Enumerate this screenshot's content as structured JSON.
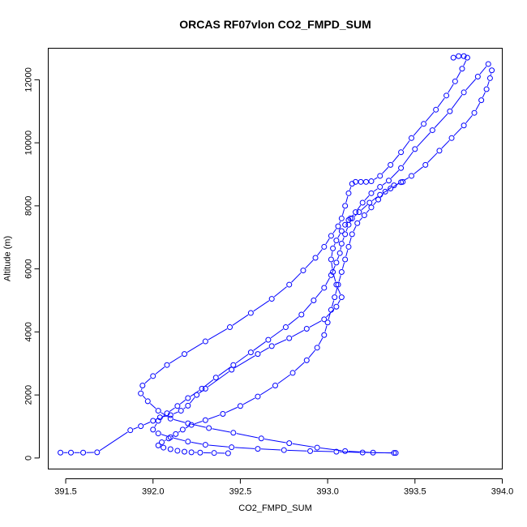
{
  "chart_data": {
    "type": "line",
    "title": "ORCAS RF07vlon CO2_FMPD_SUM",
    "xlabel": "CO2_FMPD_SUM",
    "ylabel": "Altitude (m)",
    "xlim": [
      391.4,
      394.0
    ],
    "ylim": [
      -350,
      13000
    ],
    "x_ticks": [
      391.5,
      392.0,
      392.5,
      393.0,
      393.5,
      394.0
    ],
    "x_tick_labels": [
      "391.5",
      "392.0",
      "392.5",
      "393.0",
      "393.5",
      "394.0"
    ],
    "y_ticks": [
      0,
      2000,
      4000,
      6000,
      8000,
      10000,
      12000
    ],
    "y_tick_labels": [
      "0",
      "2000",
      "4000",
      "6000",
      "8000",
      "10000",
      "12000"
    ],
    "grid": false,
    "legend": "none",
    "color": "#0000ff",
    "marker": "open-circle",
    "series": [
      {
        "x": [
          391.47,
          391.53,
          391.6,
          391.68,
          391.87,
          391.93,
          392.0,
          392.04,
          392.1,
          392.16,
          392.2,
          392.25,
          392.3,
          392.45,
          392.6,
          392.68,
          392.78,
          392.88,
          392.98,
          393.05,
          393.08,
          393.05,
          393.03,
          393.02,
          393.03,
          393.05,
          393.08,
          393.1,
          393.12,
          393.13,
          393.16,
          393.2,
          393.25,
          393.3,
          393.35,
          393.42,
          393.5,
          393.6,
          393.7,
          393.78,
          393.86,
          393.92
        ],
        "y": [
          170,
          170,
          170,
          180,
          880,
          1010,
          1180,
          1290,
          1360,
          1500,
          1660,
          2000,
          2200,
          2800,
          3300,
          3550,
          3800,
          4100,
          4400,
          4800,
          5100,
          5500,
          5900,
          6300,
          6650,
          6900,
          7200,
          7400,
          7550,
          7600,
          7800,
          8100,
          8400,
          8600,
          8800,
          9200,
          9800,
          10400,
          11000,
          11600,
          12100,
          12500
        ]
      },
      {
        "x": [
          393.94,
          393.93,
          393.91,
          393.88,
          393.84,
          393.78,
          393.71,
          393.64,
          393.56,
          393.48,
          393.42,
          393.36,
          393.3,
          393.24,
          393.18,
          393.14,
          393.12,
          393.1,
          393.08,
          393.07,
          393.05,
          393.02,
          392.98,
          392.92,
          392.85,
          392.76,
          392.66,
          392.56,
          392.46,
          392.36,
          392.28,
          392.2,
          392.14,
          392.08,
          392.03,
          392.0,
          392.03,
          392.1,
          392.2,
          392.3,
          392.45,
          392.6,
          392.75,
          392.9,
          393.05,
          393.2,
          393.38
        ],
        "y": [
          12300,
          12050,
          11700,
          11350,
          10950,
          10550,
          10150,
          9750,
          9300,
          8950,
          8750,
          8550,
          8350,
          8100,
          7800,
          7600,
          7400,
          7100,
          6800,
          6500,
          6200,
          5800,
          5400,
          5000,
          4550,
          4150,
          3750,
          3350,
          2950,
          2550,
          2200,
          1900,
          1650,
          1420,
          1180,
          900,
          780,
          660,
          520,
          420,
          340,
          290,
          250,
          220,
          200,
          175,
          160
        ]
      },
      {
        "x": [
          393.72,
          393.75,
          393.78,
          393.8,
          393.77,
          393.73,
          393.68,
          393.62,
          393.55,
          393.48,
          393.42,
          393.36,
          393.3,
          393.25,
          393.22,
          393.19,
          393.16,
          393.14,
          393.12,
          393.1,
          393.08,
          393.06,
          393.02,
          392.98,
          392.93,
          392.86,
          392.78,
          392.68,
          392.56,
          392.44,
          392.3,
          392.18,
          392.08,
          392.0,
          391.94,
          391.93,
          391.97,
          392.03,
          392.1,
          392.2,
          392.32,
          392.46,
          392.62,
          392.78,
          392.94,
          393.1,
          393.26,
          393.39
        ],
        "y": [
          12700,
          12750,
          12750,
          12700,
          12350,
          11950,
          11500,
          11050,
          10600,
          10150,
          9700,
          9300,
          8950,
          8780,
          8760,
          8760,
          8760,
          8700,
          8400,
          8000,
          7600,
          7350,
          7050,
          6700,
          6350,
          5950,
          5500,
          5050,
          4600,
          4150,
          3700,
          3300,
          2950,
          2600,
          2300,
          2050,
          1800,
          1500,
          1250,
          1100,
          950,
          800,
          620,
          470,
          330,
          220,
          170,
          160
        ]
      },
      {
        "x": [
          392.43,
          392.35,
          392.27,
          392.22,
          392.18,
          392.14,
          392.1,
          392.06,
          392.03,
          392.05,
          392.09,
          392.13,
          392.17,
          392.22,
          392.3,
          392.4,
          392.5,
          392.6,
          392.7,
          392.8,
          392.88,
          392.94,
          392.98,
          393.0,
          393.02,
          393.04,
          393.06,
          393.08,
          393.1,
          393.12,
          393.14,
          393.17,
          393.21,
          393.25,
          393.29,
          393.33,
          393.38,
          393.43
        ],
        "y": [
          150,
          160,
          170,
          180,
          200,
          230,
          280,
          330,
          400,
          500,
          620,
          760,
          900,
          1050,
          1200,
          1400,
          1650,
          1950,
          2300,
          2700,
          3100,
          3500,
          3900,
          4300,
          4700,
          5100,
          5500,
          5900,
          6300,
          6700,
          7100,
          7450,
          7700,
          7950,
          8200,
          8450,
          8650,
          8760
        ]
      }
    ]
  }
}
